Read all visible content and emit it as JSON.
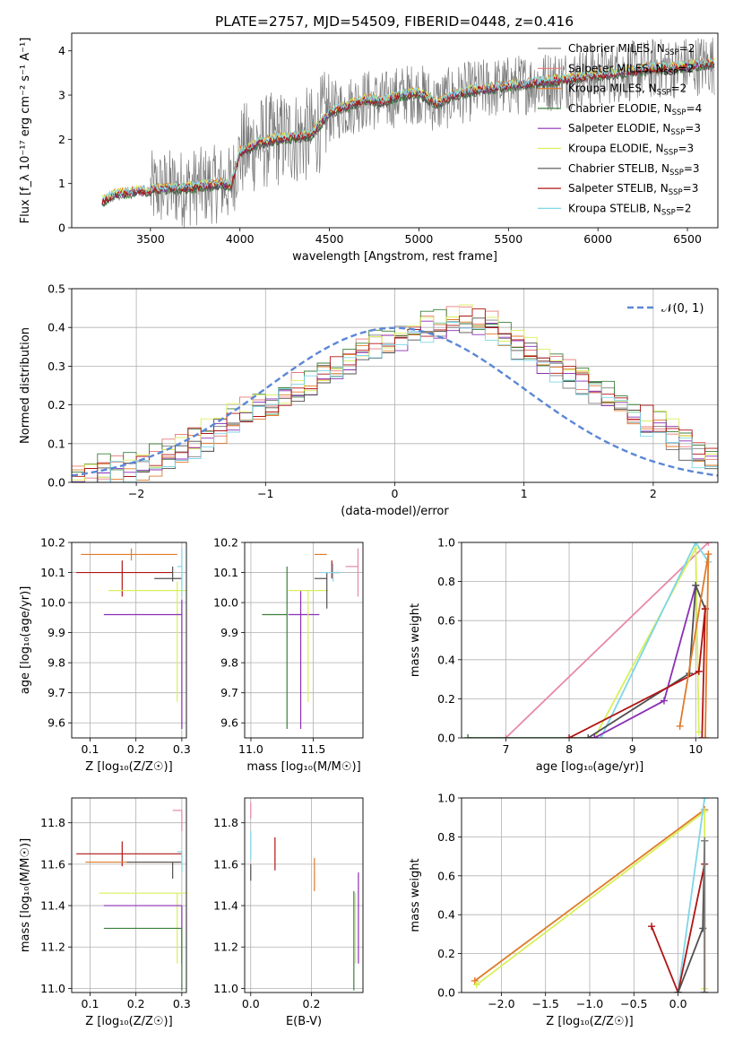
{
  "figure_title": "PLATE=2757, MJD=54509, FIBERID=0448, z=0.416",
  "colors": {
    "Chabrier MILES": "#808080",
    "Salpeter MILES": "#e8797a",
    "Kroupa MILES": "#e07b2a",
    "Chabrier ELODIE": "#3c7f3c",
    "Salpeter ELODIE": "#8a2fb5",
    "Kroupa ELODIE": "#d9ef5a",
    "Chabrier STELIB": "#505050",
    "Salpeter STELIB": "#b01515",
    "Kroupa STELIB": "#7fd6e8",
    "normal": "#5b87d6",
    "pink": "#e78aa8"
  },
  "chart_data": [
    {
      "id": "spectrum",
      "type": "line",
      "title": "PLATE=2757, MJD=54509, FIBERID=0448, z=0.416",
      "xlabel": "wavelength [Angstrom, rest frame]",
      "ylabel": "Flux [f_λ 10⁻¹⁷ erg cm⁻² s⁻¹ A⁻¹]",
      "xlim": [
        3060,
        6670
      ],
      "ylim": [
        0,
        4.4
      ],
      "xticks": [
        "3500",
        "4000",
        "4500",
        "5000",
        "5500",
        "6000",
        "6500"
      ],
      "yticks": [
        "0",
        "1",
        "2",
        "3",
        "4"
      ],
      "legend_position": "upper-right",
      "legend": [
        {
          "label": "Chabrier MILES, N",
          "sub": "SSP",
          "suffix": "=2",
          "color_key": "Chabrier MILES"
        },
        {
          "label": "Salpeter MILES, N",
          "sub": "SSP",
          "suffix": "=2",
          "color_key": "Salpeter MILES"
        },
        {
          "label": "Kroupa MILES, N",
          "sub": "SSP",
          "suffix": "=2",
          "color_key": "Kroupa MILES"
        },
        {
          "label": "Chabrier ELODIE, N",
          "sub": "SSP",
          "suffix": "=4",
          "color_key": "Chabrier ELODIE"
        },
        {
          "label": "Salpeter ELODIE, N",
          "sub": "SSP",
          "suffix": "=3",
          "color_key": "Salpeter ELODIE"
        },
        {
          "label": "Kroupa ELODIE, N",
          "sub": "SSP",
          "suffix": "=3",
          "color_key": "Kroupa ELODIE"
        },
        {
          "label": "Chabrier STELIB, N",
          "sub": "SSP",
          "suffix": "=3",
          "color_key": "Chabrier STELIB"
        },
        {
          "label": "Salpeter STELIB, N",
          "sub": "SSP",
          "suffix": "=3",
          "color_key": "Salpeter STELIB"
        },
        {
          "label": "Kroupa STELIB, N",
          "sub": "SSP",
          "suffix": "=2",
          "color_key": "Kroupa STELIB"
        }
      ],
      "model_anchors": {
        "x": [
          3230,
          3300,
          3400,
          3500,
          3600,
          3700,
          3800,
          3900,
          3950,
          4000,
          4100,
          4200,
          4300,
          4400,
          4500,
          4600,
          4700,
          4800,
          4900,
          5000,
          5100,
          5200,
          5300,
          5400,
          5500,
          5600,
          5700,
          5800,
          5900,
          6000,
          6100,
          6200,
          6300,
          6400,
          6500,
          6600
        ],
        "y": [
          0.6,
          0.75,
          0.8,
          0.85,
          0.9,
          0.9,
          0.95,
          1.0,
          0.95,
          1.7,
          1.9,
          2.0,
          2.05,
          2.1,
          2.6,
          2.75,
          2.9,
          2.85,
          3.0,
          3.05,
          2.8,
          3.0,
          3.1,
          3.15,
          3.2,
          3.25,
          3.3,
          3.35,
          3.4,
          3.45,
          3.5,
          3.55,
          3.6,
          3.6,
          3.65,
          3.7
        ]
      },
      "data_range": [
        3500,
        6650
      ]
    },
    {
      "id": "residuals",
      "type": "step",
      "xlabel": "(data-model)/error",
      "ylabel": "Normed distribution",
      "xlim": [
        -2.5,
        2.5
      ],
      "ylim": [
        0,
        0.5
      ],
      "xticks": [
        "−2",
        "−1",
        "0",
        "1",
        "2"
      ],
      "yticks": [
        "0.0",
        "0.1",
        "0.2",
        "0.3",
        "0.4",
        "0.5"
      ],
      "legend": {
        "label": "𝒩(0, 1)",
        "color_key": "normal"
      },
      "bin_width": 0.1,
      "bins_start": -2.5,
      "base": [
        0.02,
        0.02,
        0.03,
        0.03,
        0.04,
        0.05,
        0.06,
        0.07,
        0.08,
        0.1,
        0.12,
        0.14,
        0.16,
        0.18,
        0.19,
        0.2,
        0.22,
        0.24,
        0.26,
        0.28,
        0.3,
        0.32,
        0.34,
        0.36,
        0.37,
        0.38,
        0.39,
        0.4,
        0.41,
        0.42,
        0.42,
        0.41,
        0.4,
        0.38,
        0.36,
        0.34,
        0.32,
        0.3,
        0.28,
        0.26,
        0.24,
        0.22,
        0.2,
        0.18,
        0.16,
        0.14,
        0.12,
        0.1,
        0.08,
        0.06
      ]
    },
    {
      "id": "age_vs_Z",
      "type": "errorbar",
      "xlabel": "Z [log₁₀(Z/Z☉)]",
      "ylabel": "age  [log₁₀(age/yr)]",
      "xlim": [
        0.06,
        0.31
      ],
      "ylim": [
        9.55,
        10.2
      ],
      "xticks": [
        "0.1",
        "0.2",
        "0.3"
      ],
      "yticks": [
        "9.6",
        "9.7",
        "9.8",
        "9.9",
        "10.0",
        "10.1",
        "10.2"
      ],
      "points": [
        {
          "color_key": "Kroupa MILES",
          "x": 0.19,
          "xerr": [
            0.11,
            0.1
          ],
          "y": 10.16,
          "yerr": [
            0.02,
            0.02
          ]
        },
        {
          "color_key": "Salpeter STELIB",
          "x": 0.17,
          "xerr": [
            0.1,
            0.11
          ],
          "y": 10.1,
          "yerr": [
            0.08,
            0.04
          ]
        },
        {
          "color_key": "Chabrier STELIB",
          "x": 0.28,
          "xerr": [
            0.04,
            0.02
          ],
          "y": 10.08,
          "yerr": [
            0.01,
            0.04
          ]
        },
        {
          "color_key": "Kroupa ELODIE",
          "x": 0.29,
          "xerr": [
            0.15,
            0.02
          ],
          "y": 10.04,
          "yerr": [
            0.37,
            0.03
          ]
        },
        {
          "color_key": "Salpeter ELODIE",
          "x": 0.3,
          "xerr": [
            0.17,
            0.0
          ],
          "y": 9.96,
          "yerr": [
            0.38,
            0.05
          ]
        },
        {
          "color_key": "Kroupa STELIB",
          "x": 0.3,
          "xerr": [
            0.01,
            0.0
          ],
          "y": 10.12,
          "yerr": [
            0.1,
            0.06
          ]
        }
      ]
    },
    {
      "id": "age_vs_mass",
      "type": "errorbar",
      "xlabel": "mass [log₁₀(M/M☉)]",
      "ylabel": "",
      "xlim": [
        10.95,
        11.9
      ],
      "ylim": [
        9.55,
        10.2
      ],
      "xticks": [
        "11.0",
        "11.5"
      ],
      "yticks": [
        "9.6",
        "9.7",
        "9.8",
        "9.9",
        "10.0",
        "10.1",
        "10.2"
      ],
      "points": [
        {
          "color_key": "Chabrier ELODIE",
          "x": 11.29,
          "xerr": [
            0.2,
            0.0
          ],
          "y": 9.96,
          "yerr": [
            0.38,
            0.16
          ]
        },
        {
          "color_key": "Salpeter ELODIE",
          "x": 11.4,
          "xerr": [
            0.1,
            0.15
          ],
          "y": 9.96,
          "yerr": [
            0.38,
            0.08
          ]
        },
        {
          "color_key": "Kroupa ELODIE",
          "x": 11.46,
          "xerr": [
            0.16,
            0.16
          ],
          "y": 10.04,
          "yerr": [
            0.37,
            0.0
          ]
        },
        {
          "color_key": "Kroupa MILES",
          "x": 11.61,
          "xerr": [
            0.1,
            0.0
          ],
          "y": 10.16,
          "yerr": [
            0.0,
            0.0
          ]
        },
        {
          "color_key": "Chabrier STELIB",
          "x": 11.61,
          "xerr": [
            0.1,
            0.0
          ],
          "y": 10.08,
          "yerr": [
            0.1,
            0.02
          ]
        },
        {
          "color_key": "Salpeter STELIB",
          "x": 11.65,
          "xerr": [
            0.0,
            0.06
          ],
          "y": 10.1,
          "yerr": [
            0.02,
            0.04
          ]
        },
        {
          "color_key": "Kroupa STELIB",
          "x": 11.66,
          "xerr": [
            0.1,
            0.06
          ],
          "y": 10.1,
          "yerr": [
            0.03,
            0.03
          ]
        },
        {
          "color_key": "pink",
          "x": 11.86,
          "xerr": [
            0.1,
            0.0
          ],
          "y": 10.12,
          "yerr": [
            0.1,
            0.06
          ]
        }
      ]
    },
    {
      "id": "massweight_vs_age",
      "type": "line",
      "xlabel": "age  [log₁₀(age/yr)]",
      "ylabel": "mass weight",
      "xlim": [
        6.3,
        10.35
      ],
      "ylim": [
        0,
        1
      ],
      "xticks": [
        "7",
        "8",
        "9",
        "10"
      ],
      "yticks": [
        "0.0",
        "0.2",
        "0.4",
        "0.6",
        "0.8",
        "1.0"
      ],
      "series": [
        {
          "color_key": "pink",
          "x": [
            7.0,
            10.2
          ],
          "y": [
            0.0,
            1.0
          ]
        },
        {
          "color_key": "Kroupa ELODIE",
          "x": [
            8.4,
            10.0,
            10.05
          ],
          "y": [
            0.0,
            0.97,
            0.03
          ]
        },
        {
          "color_key": "Kroupa STELIB",
          "x": [
            8.5,
            10.0,
            10.2
          ],
          "y": [
            0.0,
            1.0,
            0.9
          ]
        },
        {
          "color_key": "Chabrier ELODIE",
          "x": [
            6.4,
            8.4
          ],
          "y": [
            0.0,
            0.0
          ]
        },
        {
          "color_key": "Salpeter ELODIE",
          "x": [
            8.4,
            9.5,
            10.0
          ],
          "y": [
            0.0,
            0.19,
            0.78
          ]
        },
        {
          "color_key": "Chabrier STELIB",
          "x": [
            8.3,
            9.9,
            10.0,
            10.15
          ],
          "y": [
            0.0,
            0.33,
            0.78,
            0.66
          ]
        },
        {
          "color_key": "Salpeter STELIB",
          "x": [
            8.0,
            10.05,
            10.15,
            10.1
          ],
          "y": [
            0.0,
            0.34,
            0.66,
            0.0
          ]
        },
        {
          "color_key": "Kroupa MILES",
          "x": [
            9.75,
            10.2,
            10.15
          ],
          "y": [
            0.06,
            0.94,
            0.0
          ]
        }
      ]
    },
    {
      "id": "mass_vs_Z",
      "type": "errorbar",
      "xlabel": "Z [log₁₀(Z/Z☉)]",
      "ylabel": "mass [log₁₀(M/M☉)]",
      "xlim": [
        0.06,
        0.31
      ],
      "ylim": [
        10.98,
        11.92
      ],
      "xticks": [
        "0.1",
        "0.2",
        "0.3"
      ],
      "yticks": [
        "11.0",
        "11.2",
        "11.4",
        "11.6",
        "11.8"
      ],
      "points": [
        {
          "color_key": "Salpeter STELIB",
          "x": 0.17,
          "xerr": [
            0.1,
            0.13
          ],
          "y": 11.65,
          "yerr": [
            0.06,
            0.06
          ]
        },
        {
          "color_key": "Kroupa MILES",
          "x": 0.19,
          "xerr": [
            0.1,
            0.11
          ],
          "y": 11.61,
          "yerr": [
            0.0,
            0.0
          ]
        },
        {
          "color_key": "Chabrier STELIB",
          "x": 0.28,
          "xerr": [
            0.1,
            0.02
          ],
          "y": 11.61,
          "yerr": [
            0.08,
            0.0
          ]
        },
        {
          "color_key": "Kroupa ELODIE",
          "x": 0.29,
          "xerr": [
            0.17,
            0.02
          ],
          "y": 11.46,
          "yerr": [
            0.34,
            0.0
          ]
        },
        {
          "color_key": "Salpeter ELODIE",
          "x": 0.3,
          "xerr": [
            0.17,
            0.0
          ],
          "y": 11.4,
          "yerr": [
            0.28,
            0.0
          ]
        },
        {
          "color_key": "Chabrier ELODIE",
          "x": 0.3,
          "xerr": [
            0.17,
            0.0
          ],
          "y": 11.29,
          "yerr": [
            0.3,
            0.0
          ]
        },
        {
          "color_key": "Kroupa STELIB",
          "x": 0.3,
          "xerr": [
            0.01,
            0.0
          ],
          "y": 11.66,
          "yerr": [
            0.1,
            0.0
          ]
        },
        {
          "color_key": "pink",
          "x": 0.3,
          "xerr": [
            0.02,
            0.0
          ],
          "y": 11.86,
          "yerr": [
            0.1,
            0.0
          ]
        }
      ]
    },
    {
      "id": "mass_vs_EBV",
      "type": "errorbar",
      "xlabel": "E(B-V)",
      "ylabel": "",
      "xlim": [
        -0.02,
        0.37
      ],
      "ylim": [
        10.98,
        11.92
      ],
      "xticks": [
        "0.0",
        "0.2"
      ],
      "yticks": [
        "11.0",
        "11.2",
        "11.4",
        "11.6",
        "11.8"
      ],
      "points": [
        {
          "color_key": "Kroupa STELIB",
          "x": 0.0,
          "xerr": [
            0,
            0
          ],
          "y": 11.7,
          "yerr": [
            0.08,
            0.06
          ]
        },
        {
          "color_key": "pink",
          "x": 0.0,
          "xerr": [
            0,
            0
          ],
          "y": 11.86,
          "yerr": [
            0.04,
            0.04
          ]
        },
        {
          "color_key": "Chabrier STELIB",
          "x": 0.0,
          "xerr": [
            0,
            0
          ],
          "y": 11.6,
          "yerr": [
            0.08,
            0.0
          ]
        },
        {
          "color_key": "Salpeter STELIB",
          "x": 0.08,
          "xerr": [
            0,
            0
          ],
          "y": 11.65,
          "yerr": [
            0.08,
            0.08
          ]
        },
        {
          "color_key": "Kroupa MILES",
          "x": 0.21,
          "xerr": [
            0,
            0
          ],
          "y": 11.55,
          "yerr": [
            0.08,
            0.08
          ]
        },
        {
          "color_key": "Chabrier ELODIE",
          "x": 0.34,
          "xerr": [
            0,
            0
          ],
          "y": 11.29,
          "yerr": [
            0.3,
            0.18
          ]
        },
        {
          "color_key": "Kroupa ELODIE",
          "x": 0.345,
          "xerr": [
            0,
            0
          ],
          "y": 11.3,
          "yerr": [
            0.18,
            0.16
          ]
        },
        {
          "color_key": "Salpeter ELODIE",
          "x": 0.355,
          "xerr": [
            0,
            0
          ],
          "y": 11.34,
          "yerr": [
            0.22,
            0.22
          ]
        }
      ]
    },
    {
      "id": "massweight_vs_Z",
      "type": "line",
      "xlabel": "Z [log₁₀(Z/Z☉)]",
      "ylabel": "mass weight",
      "xlim": [
        -2.45,
        0.45
      ],
      "ylim": [
        0,
        1
      ],
      "xticks": [
        "−2.0",
        "−1.5",
        "−1.0",
        "−0.5",
        "0.0"
      ],
      "yticks": [
        "0.0",
        "0.2",
        "0.4",
        "0.6",
        "0.8",
        "1.0"
      ],
      "series": [
        {
          "color_key": "Kroupa MILES",
          "x": [
            -2.3,
            0.3
          ],
          "y": [
            0.06,
            0.94
          ]
        },
        {
          "color_key": "Kroupa ELODIE",
          "x": [
            -2.28,
            0.3,
            0.3
          ],
          "y": [
            0.04,
            0.93,
            0.02
          ]
        },
        {
          "color_key": "Kroupa STELIB",
          "x": [
            0.0,
            0.3
          ],
          "y": [
            0.0,
            1.0
          ]
        },
        {
          "color_key": "Salpeter STELIB",
          "x": [
            -0.3,
            0.0,
            0.3,
            0.3
          ],
          "y": [
            0.34,
            0.0,
            0.66,
            0.0
          ]
        },
        {
          "color_key": "Chabrier STELIB",
          "x": [
            0.0,
            0.28,
            0.3
          ],
          "y": [
            0.0,
            0.33,
            0.78
          ]
        },
        {
          "color_key": "Chabrier MILES",
          "x": [
            0.3,
            0.3
          ],
          "y": [
            0.0,
            0.78
          ]
        }
      ]
    }
  ]
}
